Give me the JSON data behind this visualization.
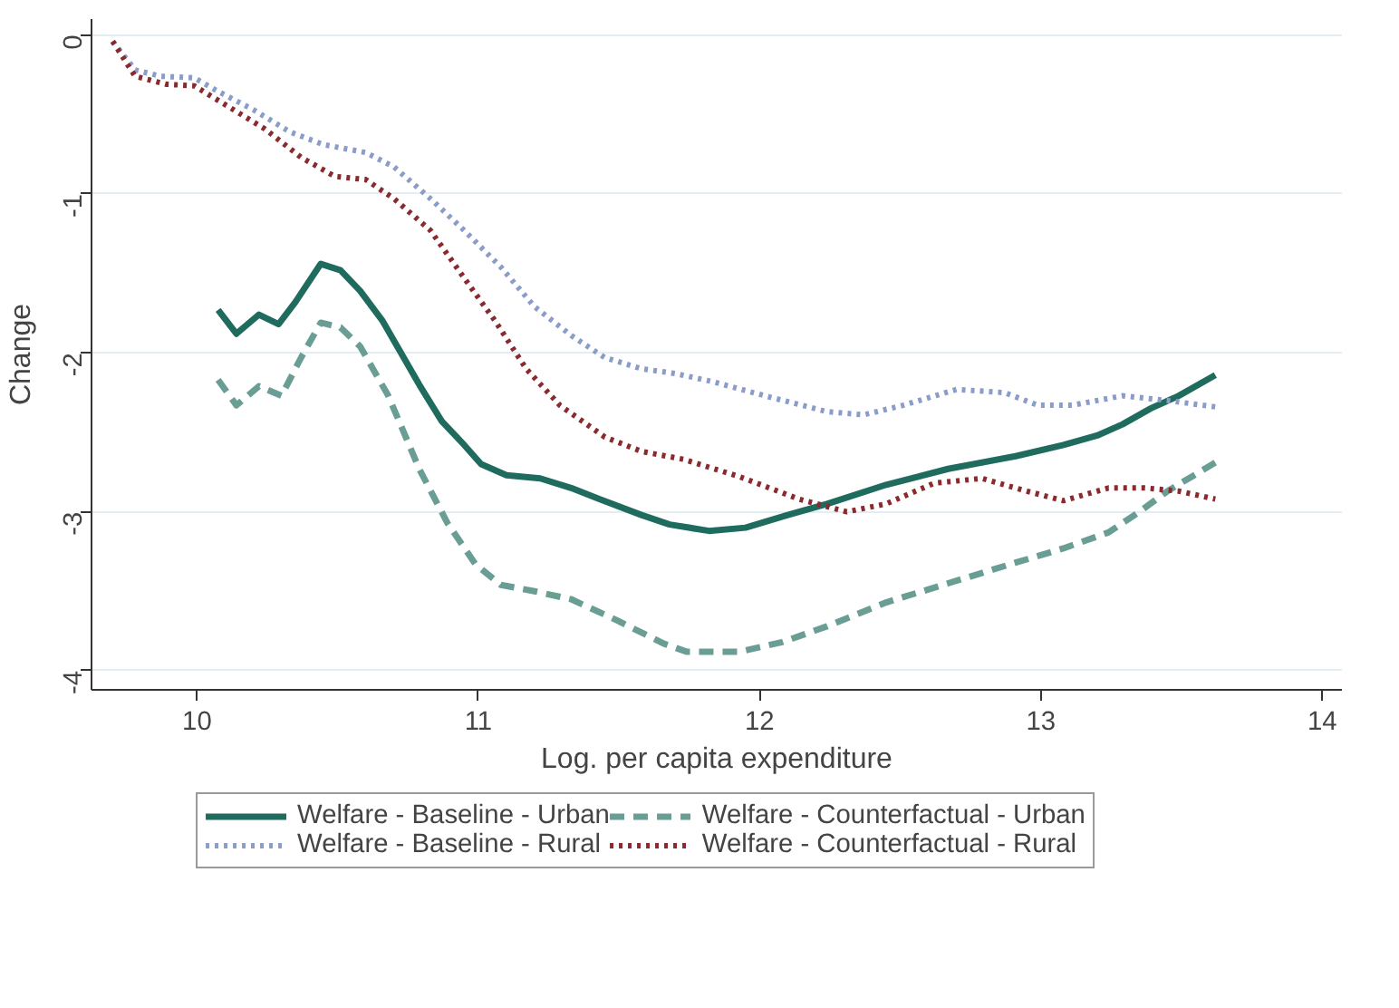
{
  "chart_data": {
    "type": "line",
    "xlabel": "Log. per capita expenditure",
    "ylabel": "Change",
    "xlim": [
      9.625,
      14.07
    ],
    "ylim": [
      -4.12,
      0.1
    ],
    "xticks": [
      10,
      11,
      12,
      13,
      14
    ],
    "yticks": [
      0,
      -1,
      -2,
      -3,
      -4
    ],
    "grid": "y",
    "legend": "bottom",
    "series": [
      {
        "name": "Welfare - Baseline - Urban",
        "color": "#1f6b5e",
        "line_style": "solid",
        "x": [
          10.075,
          10.14,
          10.22,
          10.29,
          10.35,
          10.44,
          10.51,
          10.58,
          10.66,
          10.79,
          10.87,
          10.95,
          11.01,
          11.1,
          11.22,
          11.33,
          11.43,
          11.58,
          11.68,
          11.82,
          11.95,
          12.1,
          12.24,
          12.45,
          12.67,
          12.91,
          13.08,
          13.2,
          13.29,
          13.39,
          13.49,
          13.62
        ],
        "values": [
          -1.73,
          -1.88,
          -1.76,
          -1.82,
          -1.68,
          -1.44,
          -1.48,
          -1.61,
          -1.8,
          -2.2,
          -2.43,
          -2.58,
          -2.7,
          -2.77,
          -2.79,
          -2.85,
          -2.92,
          -3.02,
          -3.08,
          -3.12,
          -3.1,
          -3.02,
          -2.95,
          -2.83,
          -2.73,
          -2.65,
          -2.58,
          -2.52,
          -2.45,
          -2.35,
          -2.27,
          -2.14
        ]
      },
      {
        "name": "Welfare - Counterfactual - Urban",
        "color": "#6a9e94",
        "line_style": "dashed",
        "x": [
          10.075,
          10.14,
          10.22,
          10.3,
          10.37,
          10.44,
          10.51,
          10.58,
          10.68,
          10.79,
          10.89,
          10.99,
          11.08,
          11.2,
          11.33,
          11.49,
          11.66,
          11.74,
          11.93,
          12.08,
          12.24,
          12.45,
          12.67,
          12.91,
          13.08,
          13.24,
          13.35,
          13.45,
          13.62
        ],
        "values": [
          -2.17,
          -2.33,
          -2.21,
          -2.27,
          -2.03,
          -1.81,
          -1.84,
          -1.96,
          -2.27,
          -2.73,
          -3.07,
          -3.33,
          -3.46,
          -3.5,
          -3.55,
          -3.68,
          -3.83,
          -3.88,
          -3.88,
          -3.82,
          -3.72,
          -3.57,
          -3.45,
          -3.32,
          -3.23,
          -3.13,
          -3.0,
          -2.87,
          -2.69
        ]
      },
      {
        "name": "Welfare - Baseline - Rural",
        "color": "#8a9cc8",
        "line_style": "dotted",
        "x": [
          9.7,
          9.78,
          9.87,
          9.99,
          10.08,
          10.2,
          10.33,
          10.45,
          10.6,
          10.7,
          10.83,
          10.95,
          11.08,
          11.2,
          11.33,
          11.45,
          11.58,
          11.7,
          11.83,
          12.04,
          12.24,
          12.37,
          12.51,
          12.7,
          12.87,
          12.99,
          13.11,
          13.29,
          13.45,
          13.62
        ],
        "values": [
          -0.04,
          -0.22,
          -0.26,
          -0.27,
          -0.36,
          -0.47,
          -0.61,
          -0.69,
          -0.74,
          -0.83,
          -1.03,
          -1.23,
          -1.46,
          -1.71,
          -1.89,
          -2.03,
          -2.1,
          -2.13,
          -2.18,
          -2.28,
          -2.37,
          -2.39,
          -2.33,
          -2.23,
          -2.25,
          -2.33,
          -2.33,
          -2.27,
          -2.3,
          -2.34
        ]
      },
      {
        "name": "Welfare - Counterfactual - Rural",
        "color": "#8b2a2e",
        "line_style": "dotted",
        "x": [
          9.7,
          9.78,
          9.89,
          9.99,
          10.12,
          10.24,
          10.37,
          10.49,
          10.6,
          10.7,
          10.83,
          10.95,
          11.06,
          11.17,
          11.29,
          11.45,
          11.58,
          11.73,
          11.93,
          12.14,
          12.31,
          12.45,
          12.62,
          12.79,
          12.95,
          13.08,
          13.24,
          13.37,
          13.49,
          13.62
        ],
        "values": [
          -0.04,
          -0.26,
          -0.31,
          -0.32,
          -0.46,
          -0.59,
          -0.77,
          -0.89,
          -0.91,
          -1.03,
          -1.23,
          -1.53,
          -1.8,
          -2.1,
          -2.33,
          -2.53,
          -2.62,
          -2.67,
          -2.78,
          -2.92,
          -3.0,
          -2.95,
          -2.82,
          -2.79,
          -2.87,
          -2.93,
          -2.85,
          -2.85,
          -2.87,
          -2.92
        ]
      }
    ]
  }
}
